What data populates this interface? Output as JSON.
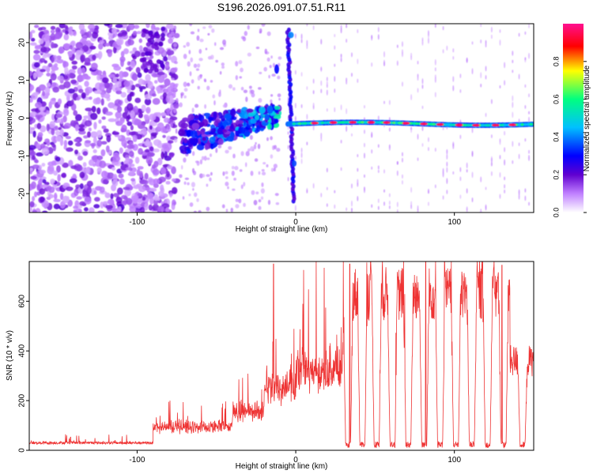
{
  "title": "S196.2026.091.07.51.R11",
  "chart_data": [
    {
      "type": "heatmap",
      "title": "S196.2026.091.07.51.R11",
      "xlabel": "Height of straight line (km)",
      "ylabel": "Frequency (Hz)",
      "xlim": [
        -168,
        150
      ],
      "ylim": [
        -25,
        25
      ],
      "xticks": [
        "-100",
        "0",
        "100"
      ],
      "yticks": [
        "-20",
        "-10",
        "0",
        "10",
        "20"
      ],
      "colorbar": {
        "label": "Normalized spectral amplitude",
        "range": [
          0,
          1
        ],
        "ticks": [
          "0.0",
          "0.2",
          "0.4",
          "0.6",
          "0.8"
        ],
        "colors": [
          "#ffffff",
          "#c080ff",
          "#6000d0",
          "#0000ff",
          "#00c0ff",
          "#00ff80",
          "#ffff00",
          "#ff0000",
          "#ff1090"
        ]
      },
      "features": {
        "noise_region_x": [
          -168,
          -75
        ],
        "cluster_x": [
          -72,
          -10
        ],
        "steady_trace_x": [
          -5,
          150
        ],
        "steady_trace_freq": -1.5,
        "steady_trace_peak_amplitude": 0.95,
        "vertical_streak_x": -3
      }
    },
    {
      "type": "line",
      "xlabel": "Height of straight line (km)",
      "ylabel": "SNR (10 * v/v)",
      "xlim": [
        -168,
        150
      ],
      "ylim": [
        0,
        760
      ],
      "xticks": [
        "-100",
        "0",
        "100"
      ],
      "yticks": [
        "0",
        "200",
        "400",
        "600"
      ],
      "series": [
        {
          "name": "SNR",
          "color": "#ee3333",
          "segments": [
            {
              "x": [
                -168,
                -90
              ],
              "level": 30
            },
            {
              "x": [
                -90,
                -40
              ],
              "level": 110
            },
            {
              "x": [
                -40,
                -20
              ],
              "level": 180
            },
            {
              "x": [
                -20,
                0
              ],
              "level": 300
            },
            {
              "x": [
                0,
                30
              ],
              "level": 380
            },
            {
              "x": [
                30,
                135
              ],
              "level": 630
            },
            {
              "x": [
                135,
                150
              ],
              "level": 360
            }
          ],
          "dropouts_x": [
            33,
            42,
            51,
            61,
            71,
            81,
            91,
            101,
            111,
            121,
            131,
            143
          ],
          "spike_max": [
            [
              -14,
              750
            ],
            [
              34,
              750
            ],
            [
              82,
              760
            ],
            [
              130,
              745
            ]
          ]
        }
      ]
    }
  ]
}
